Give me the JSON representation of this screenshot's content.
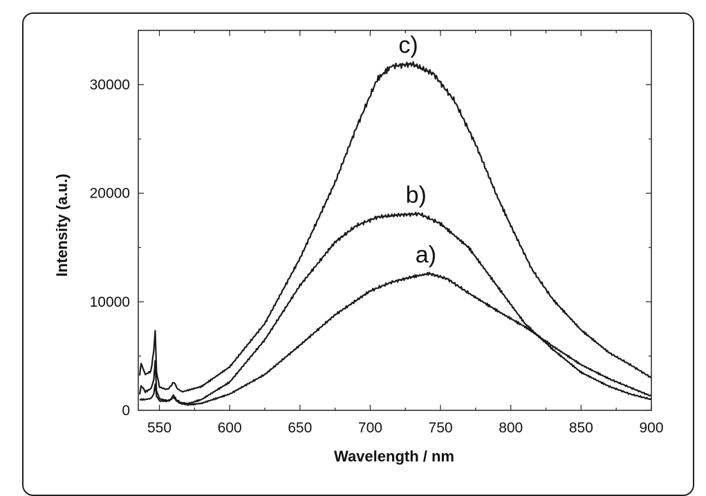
{
  "chart_data": {
    "type": "line",
    "title": "",
    "xlabel": "Wavelength / nm",
    "ylabel": "Intensity (a.u.)",
    "xlim": [
      535,
      900
    ],
    "ylim": [
      0,
      35000
    ],
    "x_ticks": [
      550,
      600,
      650,
      700,
      750,
      800,
      850,
      900
    ],
    "y_ticks": [
      0,
      10000,
      20000,
      30000
    ],
    "grid": false,
    "legend": "none",
    "line_color": "#1a1a1a",
    "series": [
      {
        "label": "a)",
        "x": [
          536,
          540,
          544,
          546,
          547,
          548,
          550,
          555,
          558,
          560,
          562,
          565,
          570,
          580,
          600,
          625,
          650,
          675,
          700,
          715,
          730,
          742,
          755,
          770,
          790,
          810,
          830,
          850,
          870,
          885,
          900
        ],
        "y": [
          1000,
          1000,
          1100,
          1500,
          2400,
          1300,
          900,
          800,
          1000,
          1200,
          900,
          600,
          500,
          650,
          1500,
          3300,
          6000,
          8800,
          11000,
          11800,
          12300,
          12600,
          12100,
          10800,
          9200,
          7700,
          5900,
          4200,
          2900,
          2100,
          1300
        ]
      },
      {
        "label": "b)",
        "x": [
          536,
          537,
          540,
          544,
          546,
          547,
          548,
          550,
          555,
          558,
          560,
          562,
          565,
          570,
          580,
          600,
          625,
          650,
          675,
          690,
          705,
          720,
          735,
          750,
          770,
          790,
          810,
          830,
          850,
          870,
          885,
          900
        ],
        "y": [
          1500,
          2300,
          1700,
          2000,
          2800,
          4600,
          1800,
          1100,
          900,
          1000,
          1400,
          1000,
          700,
          600,
          1000,
          2600,
          6500,
          11500,
          15500,
          17000,
          17800,
          18000,
          18100,
          17200,
          15000,
          11500,
          8000,
          5600,
          3500,
          2200,
          1500,
          1000
        ]
      },
      {
        "label": "c)",
        "x": [
          536,
          537,
          540,
          544,
          546,
          547,
          548,
          550,
          555,
          558,
          560,
          563,
          566,
          580,
          600,
          625,
          650,
          675,
          690,
          705,
          715,
          730,
          745,
          760,
          775,
          790,
          800,
          815,
          830,
          850,
          870,
          885,
          900
        ],
        "y": [
          3200,
          4300,
          3300,
          3600,
          5500,
          7300,
          3500,
          2200,
          1900,
          2200,
          2600,
          2000,
          1700,
          2200,
          4000,
          8000,
          14000,
          21000,
          26000,
          30500,
          31700,
          31900,
          31000,
          28500,
          24500,
          19800,
          17000,
          13000,
          10200,
          7400,
          5300,
          4200,
          3000
        ]
      }
    ]
  }
}
